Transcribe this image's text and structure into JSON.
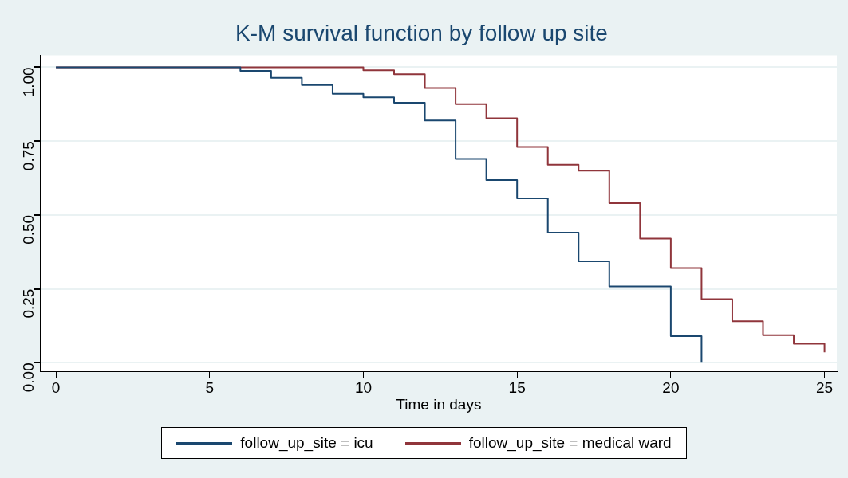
{
  "chart_data": {
    "type": "step",
    "title": "K-M survival function by follow up site",
    "xlabel": "Time in days",
    "xlim": [
      -0.5,
      25.4
    ],
    "xticks": [
      0,
      5,
      10,
      15,
      20,
      25
    ],
    "ylim": [
      -0.03,
      1.04
    ],
    "yticks": [
      {
        "value": 0,
        "label": "0.00"
      },
      {
        "value": 0.25,
        "label": "0.25"
      },
      {
        "value": 0.5,
        "label": "0.50"
      },
      {
        "value": 0.75,
        "label": "0.75"
      },
      {
        "value": 1,
        "label": "1.00"
      }
    ],
    "grid": "y",
    "legend": "bottom",
    "marker": "none",
    "line_style": "solid",
    "series": [
      {
        "name": "follow_up_site = icu",
        "color": "#1a476f",
        "x": [
          0,
          6,
          7,
          8,
          9,
          10,
          11,
          12,
          13,
          14,
          15,
          16,
          17,
          18,
          20,
          21
        ],
        "values": [
          1,
          0.988,
          0.964,
          0.94,
          0.91,
          0.898,
          0.88,
          0.82,
          0.69,
          0.618,
          0.556,
          0.44,
          0.343,
          0.258,
          0.09,
          0
        ]
      },
      {
        "name": "follow_up_site = medical ward",
        "color": "#90353b",
        "x": [
          0,
          10,
          11,
          12,
          13,
          14,
          15,
          16,
          17,
          18,
          19,
          20,
          21,
          22,
          23,
          24,
          25
        ],
        "values": [
          1,
          0.99,
          0.976,
          0.93,
          0.875,
          0.827,
          0.73,
          0.67,
          0.65,
          0.54,
          0.42,
          0.32,
          0.215,
          0.14,
          0.093,
          0.064,
          0.035
        ]
      }
    ]
  }
}
